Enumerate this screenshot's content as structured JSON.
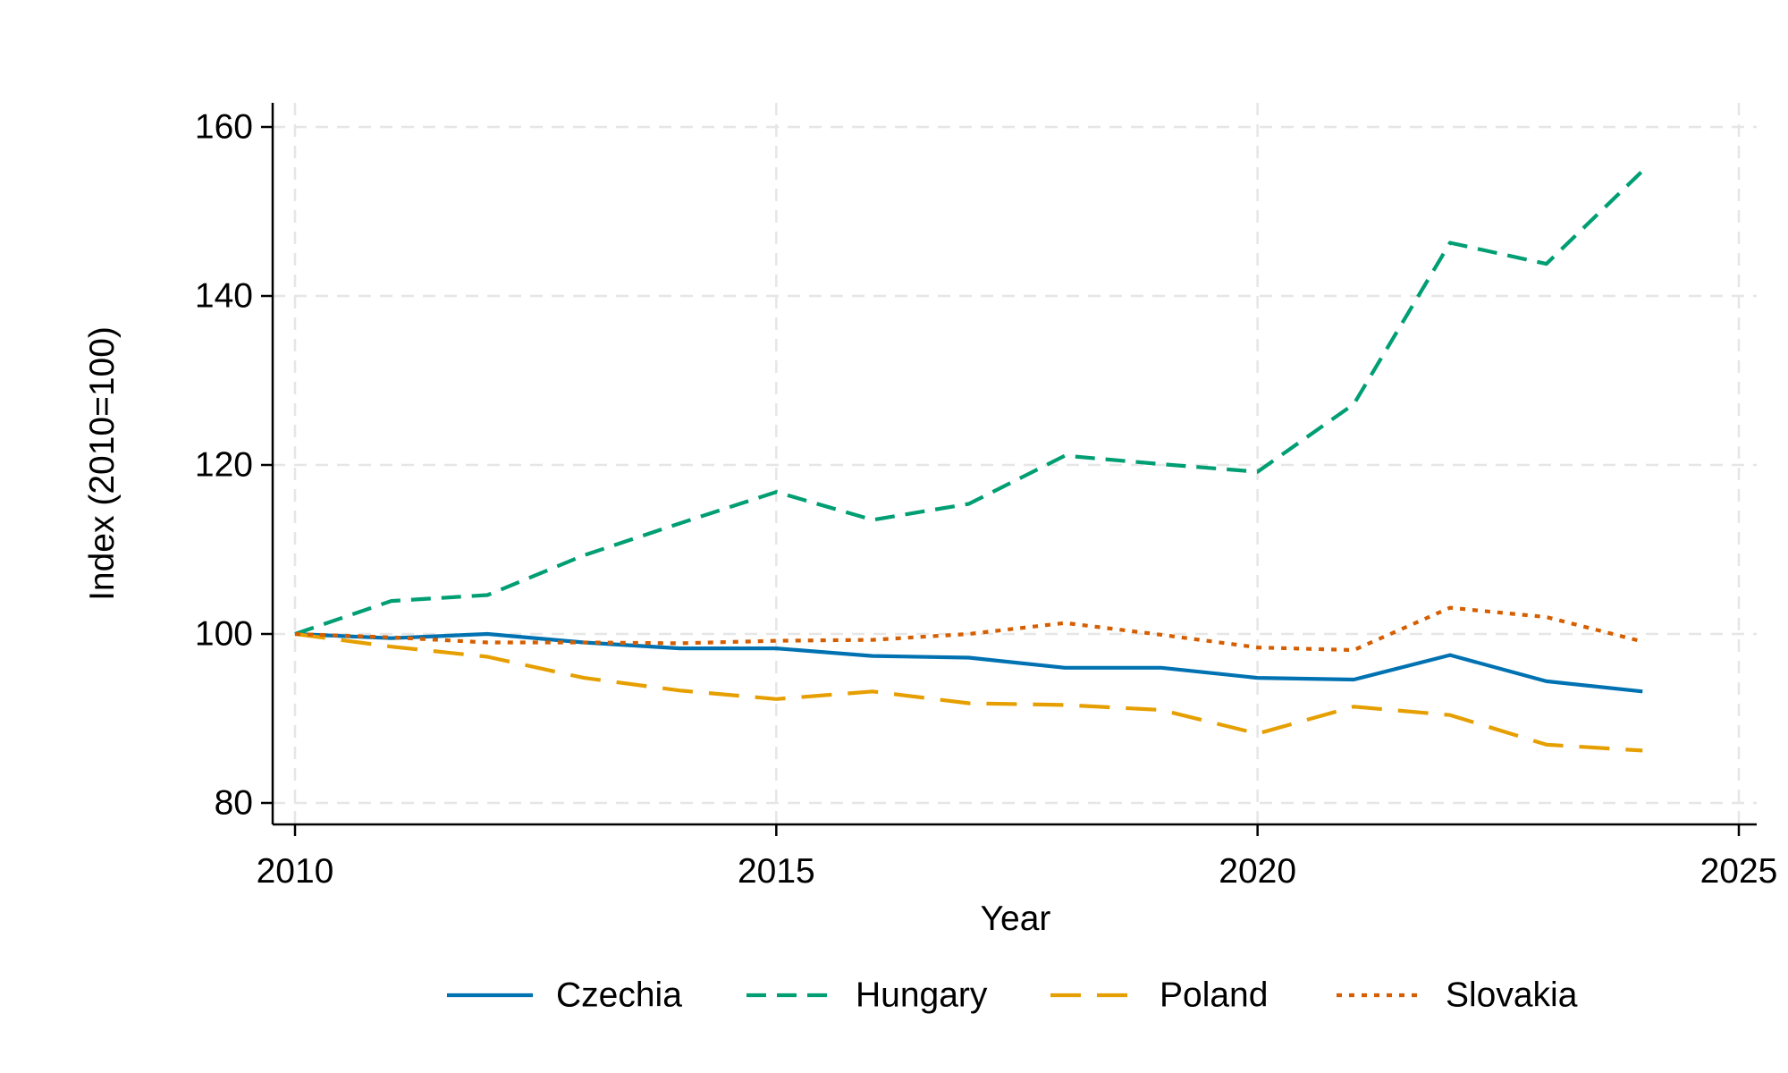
{
  "chart_data": {
    "type": "line",
    "title": "",
    "xlabel": "Year",
    "ylabel": "Index (2010=100)",
    "xlim": [
      2010,
      2025
    ],
    "ylim": [
      80,
      160
    ],
    "xticks": [
      2010,
      2015,
      2020,
      2025
    ],
    "yticks": [
      80,
      100,
      120,
      140,
      160
    ],
    "grid": true,
    "legend_position": "bottom",
    "x": [
      2010,
      2011,
      2012,
      2013,
      2014,
      2015,
      2016,
      2017,
      2018,
      2019,
      2020,
      2021,
      2022,
      2023,
      2024
    ],
    "series": [
      {
        "name": "Czechia",
        "color": "#0072B2",
        "dash": "solid",
        "values": [
          100,
          99.5,
          100.0,
          99.0,
          98.3,
          98.3,
          97.4,
          97.2,
          96.0,
          96.0,
          94.8,
          94.6,
          97.5,
          94.4,
          93.2
        ]
      },
      {
        "name": "Hungary",
        "color": "#009E73",
        "dash": "dash",
        "values": [
          100,
          103.9,
          104.6,
          109.3,
          113.1,
          116.8,
          113.5,
          115.4,
          121.1,
          120.1,
          119.2,
          127.2,
          146.3,
          143.8,
          154.8
        ]
      },
      {
        "name": "Poland",
        "color": "#E69F00",
        "dash": "longdash",
        "values": [
          100,
          98.5,
          97.3,
          94.8,
          93.3,
          92.3,
          93.2,
          91.8,
          91.6,
          91.0,
          88.2,
          91.4,
          90.4,
          86.9,
          86.2
        ]
      },
      {
        "name": "Slovakia",
        "color": "#D55E00",
        "dash": "dot",
        "values": [
          100,
          99.6,
          99.0,
          99.0,
          98.9,
          99.2,
          99.3,
          100.0,
          101.3,
          99.9,
          98.4,
          98.1,
          103.1,
          102.0,
          99.1
        ]
      }
    ]
  }
}
